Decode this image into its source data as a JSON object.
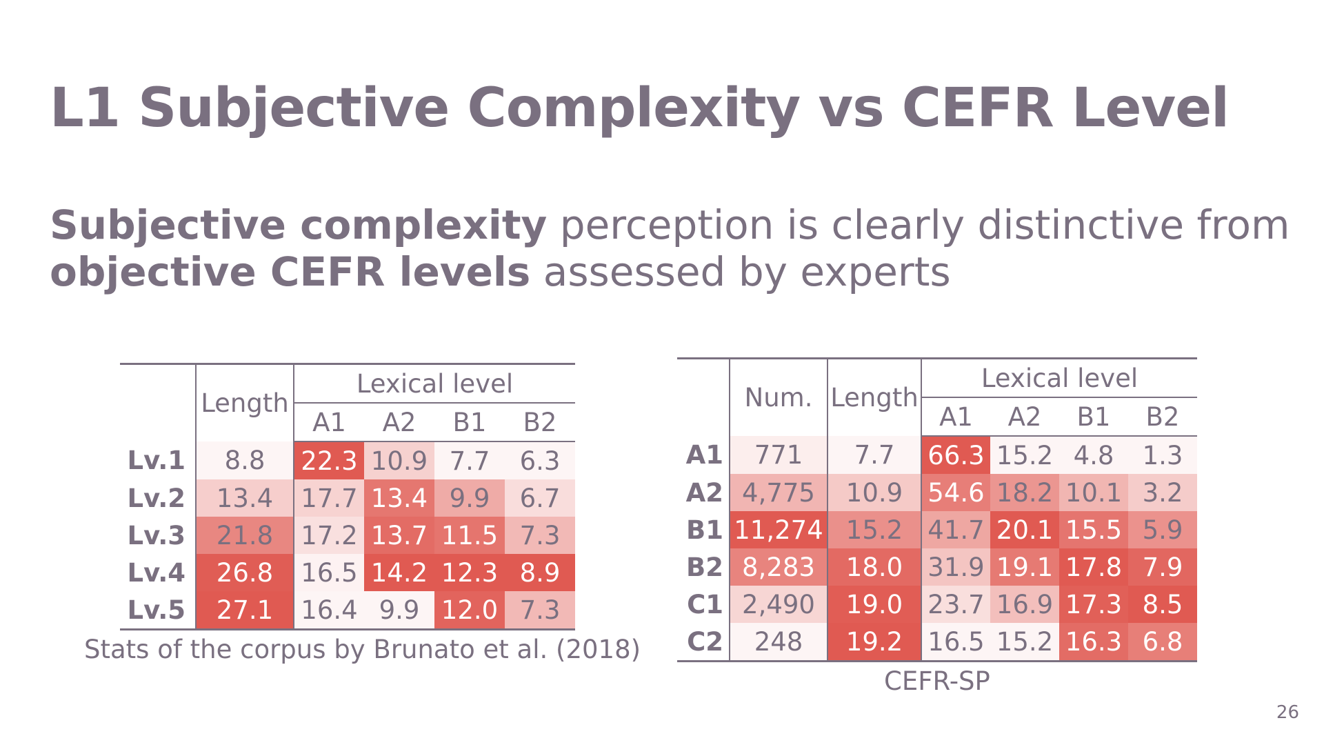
{
  "slide": {
    "title": "L1 Subjective Complexity vs CEFR Level",
    "subtitle": {
      "bold1": "Subjective complexity",
      "text1": " perception is clearly distinctive from ",
      "bold2": "objective CEFR levels",
      "text2": " assessed by experts"
    },
    "page_number": "26"
  },
  "colors": {
    "text": "#7a7080",
    "heat_base": "#e05a52"
  },
  "left_table": {
    "caption": "Stats of the corpus by Brunato et al. (2018)",
    "headers": {
      "length": "Length",
      "lexical": "Lexical level",
      "levels": [
        "A1",
        "A2",
        "B1",
        "B2"
      ]
    },
    "rows": [
      {
        "label": "Lv.1",
        "length": "8.8",
        "lex": [
          "22.3",
          "10.9",
          "7.7",
          "6.3"
        ]
      },
      {
        "label": "Lv.2",
        "length": "13.4",
        "lex": [
          "17.7",
          "13.4",
          "9.9",
          "6.7"
        ]
      },
      {
        "label": "Lv.3",
        "length": "21.8",
        "lex": [
          "17.2",
          "13.7",
          "11.5",
          "7.3"
        ]
      },
      {
        "label": "Lv.4",
        "length": "26.8",
        "lex": [
          "16.5",
          "14.2",
          "12.3",
          "8.9"
        ]
      },
      {
        "label": "Lv.5",
        "length": "27.1",
        "lex": [
          "16.4",
          "9.9",
          "12.0",
          "7.3"
        ]
      }
    ]
  },
  "right_table": {
    "caption": "CEFR-SP",
    "headers": {
      "num": "Num.",
      "length": "Length",
      "lexical": "Lexical level",
      "levels": [
        "A1",
        "A2",
        "B1",
        "B2"
      ]
    },
    "rows": [
      {
        "label": "A1",
        "num": "771",
        "length": "7.7",
        "lex": [
          "66.3",
          "15.2",
          "4.8",
          "1.3"
        ]
      },
      {
        "label": "A2",
        "num": "4,775",
        "length": "10.9",
        "lex": [
          "54.6",
          "18.2",
          "10.1",
          "3.2"
        ]
      },
      {
        "label": "B1",
        "num": "11,274",
        "length": "15.2",
        "lex": [
          "41.7",
          "20.1",
          "15.5",
          "5.9"
        ]
      },
      {
        "label": "B2",
        "num": "8,283",
        "length": "18.0",
        "lex": [
          "31.9",
          "19.1",
          "17.8",
          "7.9"
        ]
      },
      {
        "label": "C1",
        "num": "2,490",
        "length": "19.0",
        "lex": [
          "23.7",
          "16.9",
          "17.3",
          "8.5"
        ]
      },
      {
        "label": "C2",
        "num": "248",
        "length": "19.2",
        "lex": [
          "16.5",
          "15.2",
          "16.3",
          "6.8"
        ]
      }
    ]
  }
}
